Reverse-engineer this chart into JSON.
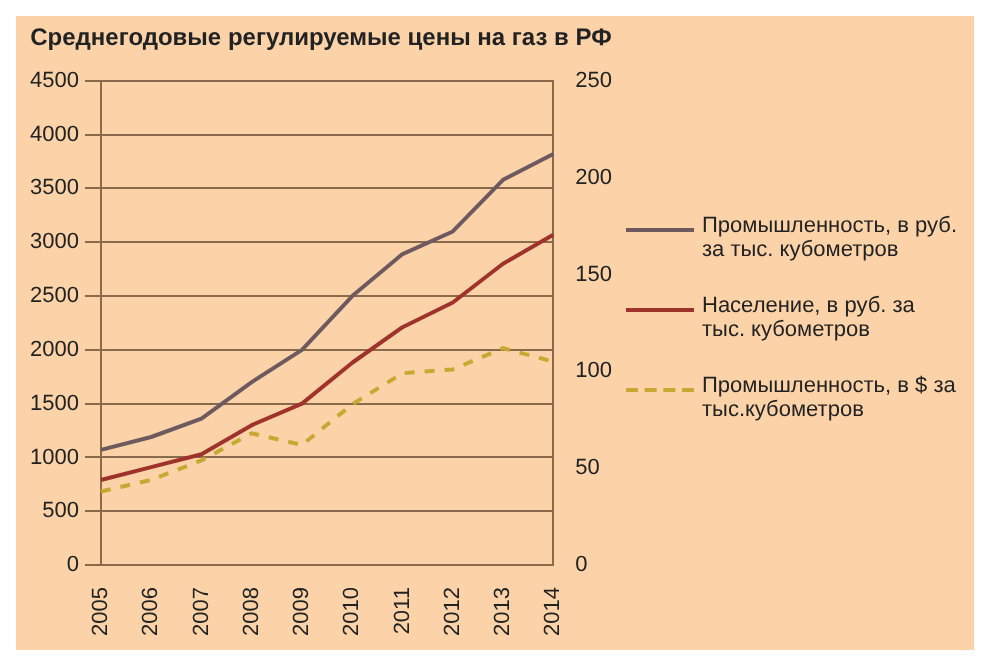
{
  "chart_data": {
    "type": "line",
    "title": "Среднегодовые регулируемые цены на газ в РФ",
    "categories": [
      "2005",
      "2006",
      "2007",
      "2008",
      "2009",
      "2010",
      "2011",
      "2012",
      "2013",
      "2014"
    ],
    "series": [
      {
        "name": "Промышленность, в руб. за тыс. кубометров",
        "color": "#6e5a5e",
        "values": [
          1070,
          1190,
          1360,
          1700,
          2000,
          2500,
          2890,
          3100,
          3580,
          3820
        ]
      },
      {
        "name": "Население, в руб. за тыс. кубометров",
        "color": "#a0322c",
        "values": [
          790,
          910,
          1030,
          1300,
          1500,
          1880,
          2210,
          2440,
          2800,
          3070
        ]
      },
      {
        "name": "Промышленность, в $ за тыс.кубометров",
        "color": "#c8a832",
        "axis": "y2",
        "line_style": "dashed",
        "values": [
          38,
          44,
          54,
          68,
          62,
          83,
          99,
          101,
          112,
          105
        ]
      }
    ],
    "ylim": [
      0,
      4500
    ],
    "yticks": [
      0,
      500,
      1000,
      1500,
      2000,
      2500,
      3000,
      3500,
      4000,
      4500
    ],
    "y2lim": [
      0,
      250
    ],
    "y2ticks": [
      0,
      50,
      100,
      150,
      200,
      250
    ],
    "grid": "y",
    "legend": "right",
    "marker": "none"
  }
}
